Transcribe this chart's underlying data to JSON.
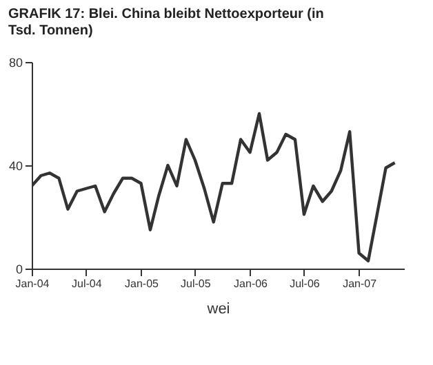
{
  "chart_data": {
    "type": "line",
    "title": "GRAFIK 17: Blei. China bleibt Nettoexporteur (in Tsd. Tonnen)",
    "xlabel": "wei",
    "x": [
      "2004-01",
      "2004-02",
      "2004-03",
      "2004-04",
      "2004-05",
      "2004-06",
      "2004-07",
      "2004-08",
      "2004-09",
      "2004-10",
      "2004-11",
      "2004-12",
      "2005-01",
      "2005-02",
      "2005-03",
      "2005-04",
      "2005-05",
      "2005-06",
      "2005-07",
      "2005-08",
      "2005-09",
      "2005-10",
      "2005-11",
      "2005-12",
      "2006-01",
      "2006-02",
      "2006-03",
      "2006-04",
      "2006-05",
      "2006-06",
      "2006-07",
      "2006-08",
      "2006-09",
      "2006-10",
      "2006-11",
      "2006-12",
      "2007-01",
      "2007-02",
      "2007-03",
      "2007-04",
      "2007-05"
    ],
    "series": [
      {
        "color": "#333333",
        "values": [
          32,
          36,
          37,
          35,
          23,
          30,
          31,
          32,
          22,
          29,
          35,
          35,
          33,
          15,
          28,
          40,
          32,
          50,
          42,
          31,
          18,
          33,
          33,
          50,
          45,
          60,
          42,
          45,
          52,
          50,
          21,
          32,
          26,
          30,
          38,
          53,
          6,
          3,
          20,
          39,
          41
        ]
      }
    ],
    "xlim": [
      "2004-01",
      "2007-06"
    ],
    "xticks": [
      {
        "value": "2004-01",
        "label": "Jan-04"
      },
      {
        "value": "2004-07",
        "label": "Jul-04"
      },
      {
        "value": "2005-01",
        "label": "Jan-05"
      },
      {
        "value": "2005-07",
        "label": "Jul-05"
      },
      {
        "value": "2006-01",
        "label": "Jan-06"
      },
      {
        "value": "2006-07",
        "label": "Jul-06"
      },
      {
        "value": "2007-01",
        "label": "Jan-07"
      }
    ],
    "ylim": [
      0,
      80
    ],
    "yticks": [
      0,
      40,
      80
    ],
    "grid": false,
    "legend": false,
    "marker": "none",
    "line_style": "solid"
  }
}
